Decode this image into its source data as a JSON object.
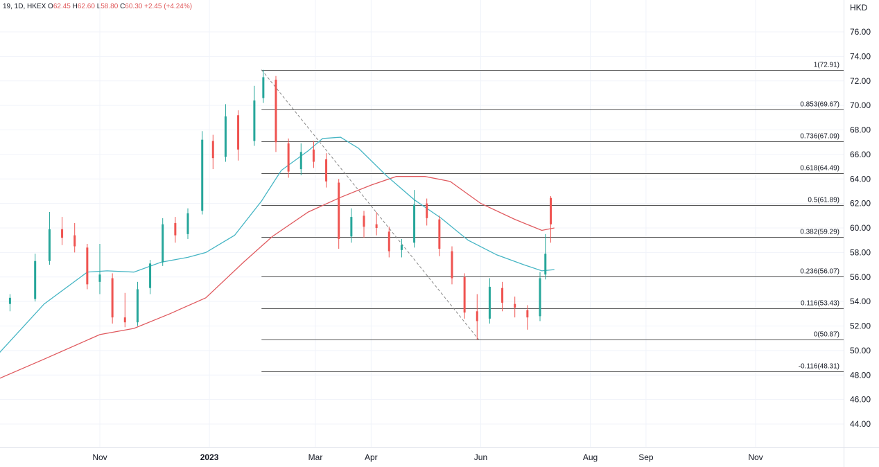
{
  "header": {
    "symbol": "19, 1D, HKEX",
    "o_label": "O",
    "o_value": "62.45",
    "h_label": "H",
    "h_value": "62.60",
    "l_label": "L",
    "l_value": "58.80",
    "c_label": "C",
    "c_value": "60.30",
    "change": "+2.45 (+4.24%)"
  },
  "chart_data": {
    "type": "candlestick",
    "currency": "HKD",
    "ylim": [
      42.0,
      77.5
    ],
    "y_ticks": [
      "76.00",
      "74.00",
      "72.00",
      "70.00",
      "68.00",
      "66.00",
      "64.00",
      "62.00",
      "60.00",
      "58.00",
      "56.00",
      "54.00",
      "52.00",
      "50.00",
      "48.00",
      "46.00",
      "44.00"
    ],
    "x_ticks": [
      {
        "label": "Nov",
        "date": "2022-11-01"
      },
      {
        "label": "2023",
        "date": "2023-01-01"
      },
      {
        "label": "Mar",
        "date": "2023-03-01"
      },
      {
        "label": "Apr",
        "date": "2023-04-01"
      },
      {
        "label": "Jun",
        "date": "2023-06-01"
      },
      {
        "label": "Aug",
        "date": "2023-08-01"
      },
      {
        "label": "Sep",
        "date": "2023-09-01"
      },
      {
        "label": "Nov",
        "date": "2023-11-01"
      }
    ],
    "fib_levels": [
      {
        "label": "1(72.91)",
        "value": 72.91
      },
      {
        "label": "0.853(69.67)",
        "value": 69.67
      },
      {
        "label": "0.736(67.09)",
        "value": 67.09
      },
      {
        "label": "0.618(64.49)",
        "value": 64.49
      },
      {
        "label": "0.5(61.89)",
        "value": 61.89
      },
      {
        "label": "0.382(59.29)",
        "value": 59.29
      },
      {
        "label": "0.236(56.07)",
        "value": 56.07
      },
      {
        "label": "0.116(53.43)",
        "value": 53.43
      },
      {
        "label": "0(50.87)",
        "value": 50.87
      },
      {
        "label": "-0.116(48.31)",
        "value": 48.31
      }
    ],
    "fib_start_date": "2023-01-30",
    "trend_line": {
      "from_date": "2023-01-30",
      "from_value": 72.91,
      "to_date": "2023-05-31",
      "to_value": 50.87
    },
    "candles": [
      {
        "date": "2022-09-12",
        "o": 53.8,
        "h": 54.6,
        "l": 53.2,
        "c": 54.3
      },
      {
        "date": "2022-09-26",
        "o": 54.2,
        "h": 57.9,
        "l": 54.0,
        "c": 57.3
      },
      {
        "date": "2022-10-04",
        "o": 57.3,
        "h": 61.3,
        "l": 57.0,
        "c": 59.9
      },
      {
        "date": "2022-10-11",
        "o": 59.9,
        "h": 60.9,
        "l": 58.6,
        "c": 59.2
      },
      {
        "date": "2022-10-18",
        "o": 59.4,
        "h": 60.4,
        "l": 58.0,
        "c": 58.5
      },
      {
        "date": "2022-10-25",
        "o": 58.4,
        "h": 58.7,
        "l": 55.0,
        "c": 55.4
      },
      {
        "date": "2022-11-01",
        "o": 55.6,
        "h": 58.7,
        "l": 54.6,
        "c": 56.2
      },
      {
        "date": "2022-11-08",
        "o": 55.9,
        "h": 56.3,
        "l": 52.2,
        "c": 52.7
      },
      {
        "date": "2022-11-15",
        "o": 52.7,
        "h": 54.7,
        "l": 51.9,
        "c": 52.3
      },
      {
        "date": "2022-11-22",
        "o": 52.3,
        "h": 55.6,
        "l": 52.0,
        "c": 55.0
      },
      {
        "date": "2022-11-29",
        "o": 55.1,
        "h": 57.4,
        "l": 54.6,
        "c": 57.1
      },
      {
        "date": "2022-12-06",
        "o": 57.2,
        "h": 60.8,
        "l": 56.9,
        "c": 60.3
      },
      {
        "date": "2022-12-13",
        "o": 60.4,
        "h": 60.9,
        "l": 58.8,
        "c": 59.4
      },
      {
        "date": "2022-12-20",
        "o": 59.5,
        "h": 61.6,
        "l": 59.1,
        "c": 61.2
      },
      {
        "date": "2022-12-28",
        "o": 61.4,
        "h": 67.9,
        "l": 61.1,
        "c": 67.2
      },
      {
        "date": "2023-01-03",
        "o": 67.1,
        "h": 67.6,
        "l": 64.8,
        "c": 65.7
      },
      {
        "date": "2023-01-10",
        "o": 65.8,
        "h": 70.1,
        "l": 65.4,
        "c": 69.1
      },
      {
        "date": "2023-01-17",
        "o": 69.2,
        "h": 69.6,
        "l": 65.5,
        "c": 66.4
      },
      {
        "date": "2023-01-26",
        "o": 67.1,
        "h": 71.6,
        "l": 66.7,
        "c": 70.4
      },
      {
        "date": "2023-01-31",
        "o": 70.6,
        "h": 72.91,
        "l": 70.2,
        "c": 72.3
      },
      {
        "date": "2023-02-07",
        "o": 72.1,
        "h": 72.4,
        "l": 66.2,
        "c": 67.0
      },
      {
        "date": "2023-02-14",
        "o": 66.9,
        "h": 67.3,
        "l": 64.1,
        "c": 64.6
      },
      {
        "date": "2023-02-21",
        "o": 64.8,
        "h": 66.9,
        "l": 64.3,
        "c": 66.2
      },
      {
        "date": "2023-02-28",
        "o": 66.4,
        "h": 67.1,
        "l": 64.9,
        "c": 65.4
      },
      {
        "date": "2023-03-07",
        "o": 65.6,
        "h": 66.1,
        "l": 63.3,
        "c": 63.8
      },
      {
        "date": "2023-03-14",
        "o": 63.7,
        "h": 64.0,
        "l": 58.3,
        "c": 59.1
      },
      {
        "date": "2023-03-21",
        "o": 59.3,
        "h": 61.6,
        "l": 58.8,
        "c": 60.9
      },
      {
        "date": "2023-03-28",
        "o": 61.0,
        "h": 61.4,
        "l": 59.2,
        "c": 60.1
      },
      {
        "date": "2023-04-04",
        "o": 60.3,
        "h": 61.3,
        "l": 59.4,
        "c": 60.0
      },
      {
        "date": "2023-04-11",
        "o": 59.7,
        "h": 60.1,
        "l": 57.6,
        "c": 58.1
      },
      {
        "date": "2023-04-18",
        "o": 58.2,
        "h": 59.1,
        "l": 57.6,
        "c": 58.6
      },
      {
        "date": "2023-04-25",
        "o": 58.8,
        "h": 63.1,
        "l": 58.4,
        "c": 61.9
      },
      {
        "date": "2023-05-02",
        "o": 62.0,
        "h": 62.4,
        "l": 60.2,
        "c": 60.8
      },
      {
        "date": "2023-05-09",
        "o": 60.7,
        "h": 61.0,
        "l": 57.7,
        "c": 58.3
      },
      {
        "date": "2023-05-16",
        "o": 58.1,
        "h": 58.5,
        "l": 55.4,
        "c": 55.9
      },
      {
        "date": "2023-05-23",
        "o": 56.0,
        "h": 56.3,
        "l": 52.6,
        "c": 53.1
      },
      {
        "date": "2023-05-30",
        "o": 53.2,
        "h": 54.6,
        "l": 50.87,
        "c": 52.4
      },
      {
        "date": "2023-06-06",
        "o": 52.6,
        "h": 55.9,
        "l": 52.2,
        "c": 55.2
      },
      {
        "date": "2023-06-13",
        "o": 55.1,
        "h": 55.6,
        "l": 53.2,
        "c": 53.9
      },
      {
        "date": "2023-06-20",
        "o": 53.8,
        "h": 54.4,
        "l": 52.7,
        "c": 53.5
      },
      {
        "date": "2023-06-27",
        "o": 53.3,
        "h": 53.7,
        "l": 51.7,
        "c": 52.7
      },
      {
        "date": "2023-07-04",
        "o": 52.8,
        "h": 56.4,
        "l": 52.4,
        "c": 55.9
      },
      {
        "date": "2023-07-07",
        "o": 56.2,
        "h": 59.5,
        "l": 55.8,
        "c": 57.9
      },
      {
        "date": "2023-07-10",
        "o": 62.45,
        "h": 62.6,
        "l": 58.8,
        "c": 60.3
      }
    ],
    "ma_fast": [
      {
        "date": "2022-09-01",
        "v": 49.0
      },
      {
        "date": "2022-10-01",
        "v": 53.8
      },
      {
        "date": "2022-10-25",
        "v": 56.4
      },
      {
        "date": "2022-11-05",
        "v": 56.5
      },
      {
        "date": "2022-11-20",
        "v": 56.4
      },
      {
        "date": "2022-12-05",
        "v": 57.2
      },
      {
        "date": "2022-12-20",
        "v": 57.6
      },
      {
        "date": "2022-12-30",
        "v": 58.0
      },
      {
        "date": "2023-01-15",
        "v": 59.4
      },
      {
        "date": "2023-01-30",
        "v": 62.2
      },
      {
        "date": "2023-02-10",
        "v": 64.7
      },
      {
        "date": "2023-02-25",
        "v": 66.3
      },
      {
        "date": "2023-03-05",
        "v": 67.3
      },
      {
        "date": "2023-03-15",
        "v": 67.4
      },
      {
        "date": "2023-03-25",
        "v": 66.5
      },
      {
        "date": "2023-04-10",
        "v": 64.2
      },
      {
        "date": "2023-04-25",
        "v": 62.3
      },
      {
        "date": "2023-05-10",
        "v": 60.8
      },
      {
        "date": "2023-05-25",
        "v": 59.0
      },
      {
        "date": "2023-06-10",
        "v": 57.8
      },
      {
        "date": "2023-06-25",
        "v": 57.0
      },
      {
        "date": "2023-07-05",
        "v": 56.5
      },
      {
        "date": "2023-07-12",
        "v": 56.6
      }
    ],
    "ma_slow": [
      {
        "date": "2022-09-01",
        "v": 47.4
      },
      {
        "date": "2022-10-01",
        "v": 49.3
      },
      {
        "date": "2022-11-01",
        "v": 51.3
      },
      {
        "date": "2022-11-20",
        "v": 51.8
      },
      {
        "date": "2022-12-10",
        "v": 53.0
      },
      {
        "date": "2022-12-30",
        "v": 54.3
      },
      {
        "date": "2023-01-20",
        "v": 57.2
      },
      {
        "date": "2023-02-05",
        "v": 59.3
      },
      {
        "date": "2023-02-25",
        "v": 61.3
      },
      {
        "date": "2023-03-15",
        "v": 62.5
      },
      {
        "date": "2023-04-01",
        "v": 63.5
      },
      {
        "date": "2023-04-15",
        "v": 64.2
      },
      {
        "date": "2023-05-01",
        "v": 64.2
      },
      {
        "date": "2023-05-15",
        "v": 63.8
      },
      {
        "date": "2023-06-01",
        "v": 62.0
      },
      {
        "date": "2023-06-20",
        "v": 60.7
      },
      {
        "date": "2023-07-05",
        "v": 59.8
      },
      {
        "date": "2023-07-12",
        "v": 60.0
      }
    ]
  },
  "colors": {
    "up": "#26a69a",
    "down": "#ef5350",
    "ma_fast": "#45b5c4",
    "ma_slow": "#e05a5f",
    "fib_line": "#555555",
    "grid": "#f0f3fa",
    "axis": "#e0e3eb"
  }
}
